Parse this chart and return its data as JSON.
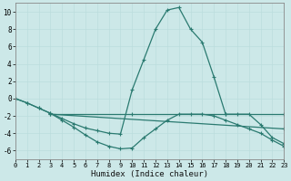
{
  "xlabel": "Humidex (Indice chaleur)",
  "xlim": [
    0,
    23
  ],
  "ylim": [
    -7,
    11
  ],
  "yticks": [
    -6,
    -4,
    -2,
    0,
    2,
    4,
    6,
    8,
    10
  ],
  "xticks": [
    0,
    1,
    2,
    3,
    4,
    5,
    6,
    7,
    8,
    9,
    10,
    11,
    12,
    13,
    14,
    15,
    16,
    17,
    18,
    19,
    20,
    21,
    22,
    23
  ],
  "bg_color": "#cce8e8",
  "grid_color": "#d9eeee",
  "line_color": "#2a7a70",
  "lines": [
    {
      "x": [
        0,
        1,
        2,
        3,
        4,
        5,
        6,
        7,
        8,
        9,
        10,
        11,
        12,
        13,
        14,
        15,
        16,
        17,
        18,
        19,
        20,
        21,
        22,
        23
      ],
      "y": [
        0.0,
        -0.5,
        -1.1,
        -1.7,
        -2.3,
        -2.9,
        -3.4,
        -3.7,
        -4.0,
        -4.1,
        1.0,
        4.5,
        8.0,
        10.2,
        10.5,
        8.0,
        6.5,
        2.5,
        -1.8,
        -1.8,
        -1.8,
        -3.0,
        -4.5,
        -5.2
      ]
    },
    {
      "x": [
        0,
        1,
        2,
        3,
        4,
        5,
        6,
        7,
        8,
        9,
        10,
        11,
        12,
        13,
        14,
        15,
        16,
        17,
        18,
        19,
        20,
        21,
        22,
        23
      ],
      "y": [
        0.0,
        -0.5,
        -1.1,
        -1.7,
        -2.5,
        -3.3,
        -4.2,
        -5.0,
        -5.5,
        -5.8,
        -5.7,
        -4.5,
        -3.5,
        -2.5,
        -1.8,
        -1.8,
        -1.8,
        -2.0,
        -2.5,
        -3.0,
        -3.5,
        -4.0,
        -4.8,
        -5.5
      ]
    },
    {
      "x": [
        3,
        10,
        18,
        23
      ],
      "y": [
        -1.8,
        -1.8,
        -1.8,
        -1.8
      ]
    },
    {
      "comment": "diagonal line from 3,-1.8 to 23,-3.5",
      "x": [
        3,
        23
      ],
      "y": [
        -1.8,
        -3.5
      ]
    }
  ]
}
